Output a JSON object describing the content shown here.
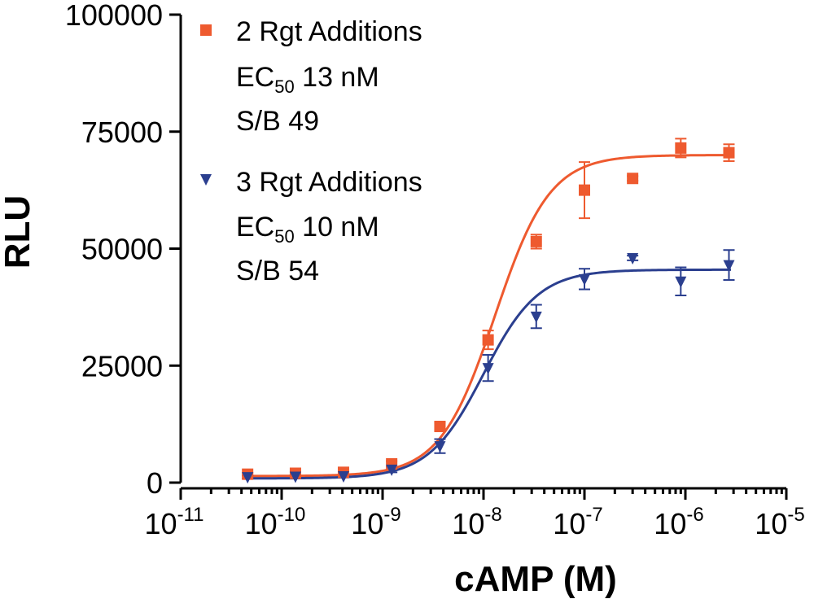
{
  "chart_data": {
    "type": "scatter",
    "xlabel": "cAMP (M)",
    "ylabel": "RLU",
    "x_scale": "log",
    "xlim": [
      1e-11,
      1e-05
    ],
    "ylim": [
      0,
      100000
    ],
    "x_ticks": [
      {
        "value": 1e-11,
        "base": "10",
        "exp": "-11"
      },
      {
        "value": 1e-10,
        "base": "10",
        "exp": "-10"
      },
      {
        "value": 1e-09,
        "base": "10",
        "exp": "-9"
      },
      {
        "value": 1e-08,
        "base": "10",
        "exp": "-8"
      },
      {
        "value": 1e-07,
        "base": "10",
        "exp": "-7"
      },
      {
        "value": 1e-06,
        "base": "10",
        "exp": "-6"
      },
      {
        "value": 1e-05,
        "base": "10",
        "exp": "-5"
      }
    ],
    "y_ticks": [
      {
        "value": 0,
        "label": "0"
      },
      {
        "value": 25000,
        "label": "25000"
      },
      {
        "value": 50000,
        "label": "50000"
      },
      {
        "value": 75000,
        "label": "75000"
      },
      {
        "value": 100000,
        "label": "100000"
      }
    ],
    "grid": false,
    "legend_position": "top-left",
    "series": [
      {
        "name": "2 Rgt Additions",
        "color": "#ee5a2f",
        "marker": "square",
        "ec50_label": "EC",
        "ec50_sub": "50",
        "ec50_value": " 13 nM",
        "sb_label": "S/B 49",
        "x": [
          4.6e-11,
          1.37e-10,
          4.1e-10,
          1.23e-09,
          3.7e-09,
          1.11e-08,
          3.33e-08,
          1e-07,
          3e-07,
          9e-07,
          2.7e-06
        ],
        "y": [
          1800,
          2000,
          2200,
          4000,
          12000,
          30500,
          51500,
          62500,
          65000,
          71500,
          70500
        ],
        "err": [
          300,
          300,
          300,
          600,
          800,
          2000,
          1500,
          6000,
          500,
          2000,
          1800
        ],
        "fit": {
          "bottom": 1400,
          "top": 70000,
          "ec50": 1.3e-08,
          "hill": 1.6
        }
      },
      {
        "name": "3 Rgt Additions",
        "color": "#2b3f8f",
        "marker": "triangle-down",
        "ec50_label": "EC",
        "ec50_sub": "50",
        "ec50_value": " 10 nM",
        "sb_label": "S/B 54",
        "x": [
          4.6e-11,
          1.37e-10,
          4.1e-10,
          1.23e-09,
          3.7e-09,
          1.11e-08,
          3.33e-08,
          1e-07,
          3e-07,
          9e-07,
          2.7e-06
        ],
        "y": [
          1200,
          1300,
          1400,
          2800,
          7800,
          24500,
          35500,
          43500,
          48000,
          43000,
          46500
        ],
        "err": [
          300,
          300,
          300,
          600,
          1500,
          2800,
          2500,
          2200,
          500,
          3000,
          3200
        ],
        "fit": {
          "bottom": 900,
          "top": 45500,
          "ec50": 1e-08,
          "hill": 1.6
        }
      }
    ]
  }
}
